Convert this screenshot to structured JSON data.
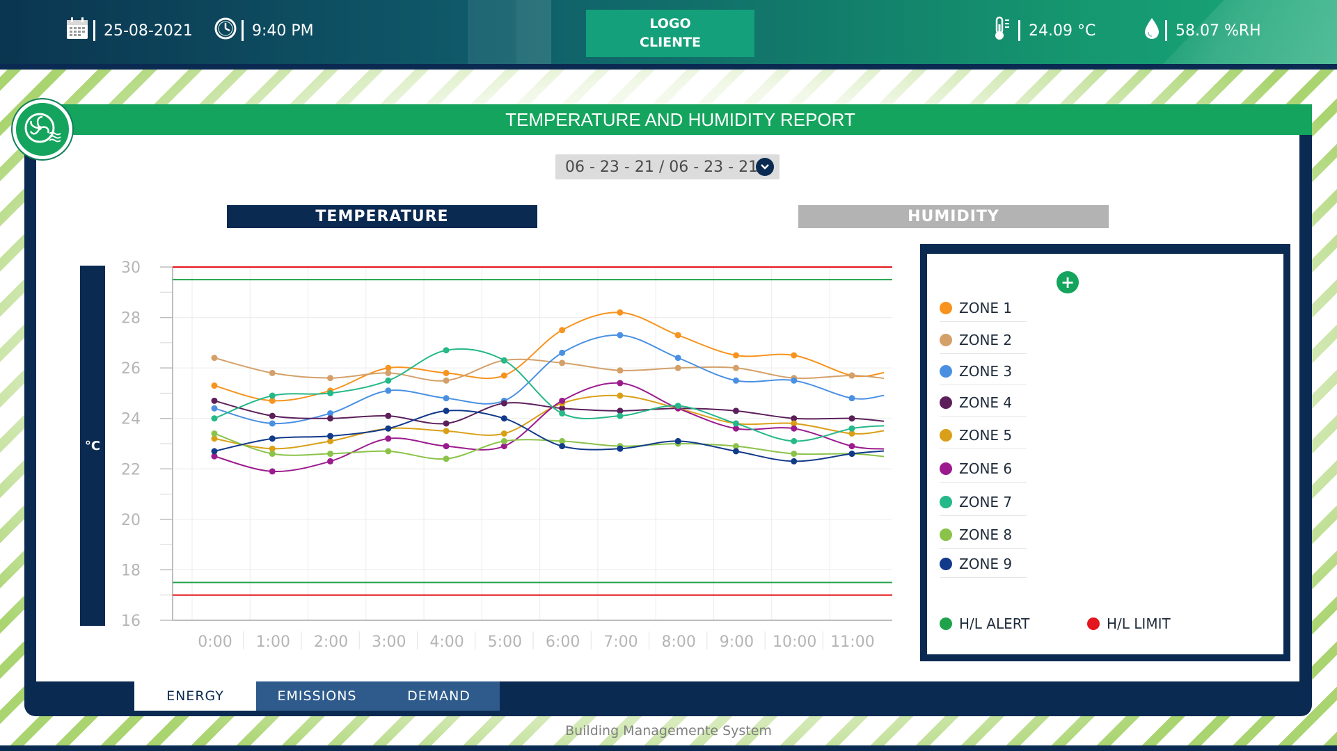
{
  "header": {
    "date": "25-08-2021",
    "time": "9:40 PM",
    "logo_line1": "LOGO",
    "logo_line2": "CLIENTE",
    "temperature": "24.09 °C",
    "humidity": "58.07 %RH"
  },
  "report": {
    "title": "TEMPERATURE AND HUMIDITY REPORT",
    "date_range": "06 - 23 - 21 / 06 - 23 - 21",
    "tab_temperature": "TEMPERATURE",
    "tab_humidity": "HUMIDITY",
    "y_unit": "°C"
  },
  "legend": {
    "add_symbol": "+",
    "zones": [
      {
        "label": "ZONE 1",
        "color": "#f7931e"
      },
      {
        "label": "ZONE 2",
        "color": "#d4a06a"
      },
      {
        "label": "ZONE 3",
        "color": "#4a90e2"
      },
      {
        "label": "ZONE 4",
        "color": "#5b1f5a"
      },
      {
        "label": "ZONE 5",
        "color": "#d9a017"
      },
      {
        "label": "ZONE 6",
        "color": "#9b1b8e"
      },
      {
        "label": "ZONE 7",
        "color": "#25b888"
      },
      {
        "label": "ZONE 8",
        "color": "#8bc34a"
      },
      {
        "label": "ZONE 9",
        "color": "#123a8a"
      }
    ],
    "alert_label": "H/L ALERT",
    "alert_color": "#1fa34a",
    "limit_label": "H/L LIMIT",
    "limit_color": "#e3161d"
  },
  "bottom_tabs": {
    "energy": "ENERGY",
    "emissions": "EMISSIONS",
    "demand": "DEMAND"
  },
  "footer": "Building Managemente System",
  "chart_data": {
    "type": "line",
    "x": [
      "0:00",
      "1:00",
      "2:00",
      "3:00",
      "4:00",
      "5:00",
      "6:00",
      "7:00",
      "8:00",
      "9:00",
      "10:00",
      "11:00"
    ],
    "ylim": [
      16,
      30
    ],
    "yticks": [
      16,
      18,
      20,
      22,
      24,
      26,
      28,
      30
    ],
    "alert_high": 29.5,
    "alert_low": 17.5,
    "limit_high": 30,
    "limit_low": 17,
    "series": [
      {
        "name": "ZONE 1",
        "values": [
          25.3,
          24.7,
          25.1,
          26.0,
          25.8,
          25.7,
          27.5,
          28.2,
          27.3,
          26.5,
          26.5,
          25.7
        ]
      },
      {
        "name": "ZONE 2",
        "values": [
          26.4,
          25.8,
          25.6,
          25.8,
          25.5,
          26.3,
          26.2,
          25.9,
          26.0,
          26.0,
          25.6,
          25.7
        ]
      },
      {
        "name": "ZONE 3",
        "values": [
          24.4,
          23.8,
          24.2,
          25.1,
          24.8,
          24.7,
          26.6,
          27.3,
          26.4,
          25.5,
          25.5,
          24.8
        ]
      },
      {
        "name": "ZONE 4",
        "values": [
          24.7,
          24.1,
          24.0,
          24.1,
          23.8,
          24.6,
          24.4,
          24.3,
          24.4,
          24.3,
          24.0,
          24.0
        ]
      },
      {
        "name": "ZONE 5",
        "values": [
          23.2,
          22.8,
          23.1,
          23.6,
          23.5,
          23.4,
          24.6,
          24.9,
          24.4,
          23.8,
          23.8,
          23.4
        ]
      },
      {
        "name": "ZONE 6",
        "values": [
          22.5,
          21.9,
          22.3,
          23.2,
          22.9,
          22.9,
          24.7,
          25.4,
          24.4,
          23.6,
          23.6,
          22.9
        ]
      },
      {
        "name": "ZONE 7",
        "values": [
          24.0,
          24.9,
          25.0,
          25.5,
          26.7,
          26.3,
          24.2,
          24.1,
          24.5,
          23.8,
          23.1,
          23.6
        ]
      },
      {
        "name": "ZONE 8",
        "values": [
          23.4,
          22.6,
          22.6,
          22.7,
          22.4,
          23.1,
          23.1,
          22.9,
          23.0,
          22.9,
          22.6,
          22.6
        ]
      },
      {
        "name": "ZONE 9",
        "values": [
          22.7,
          23.2,
          23.3,
          23.6,
          24.3,
          24.0,
          22.9,
          22.8,
          23.1,
          22.7,
          22.3,
          22.6
        ]
      }
    ]
  }
}
